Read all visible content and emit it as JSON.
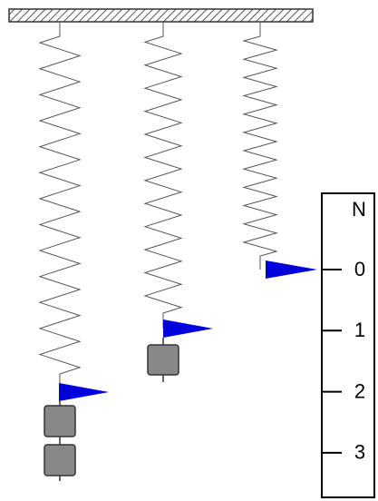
{
  "scale": {
    "unit": "N",
    "ticks": [
      "0",
      "1",
      "2",
      "3"
    ]
  }
}
